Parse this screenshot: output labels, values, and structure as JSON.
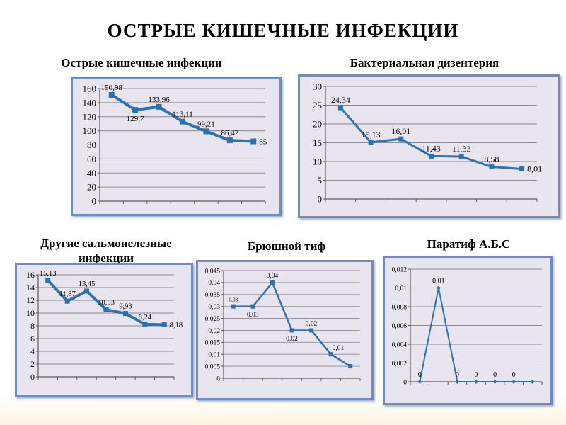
{
  "slide": {
    "title": "ОСТРЫЕ КИШЕЧНЫЕ ИНФЕКЦИИ"
  },
  "colors": {
    "frame_border": "#6b8dc2",
    "plot_background": "#e8e5f1",
    "line": "#2e73b0",
    "marker": "#2e6fae",
    "grid": "#8c8c8c",
    "axis": "#5a5a5a",
    "text": "#000000"
  },
  "chart_data": [
    {
      "id": "acute-intestinal-infections",
      "type": "line",
      "title": "Острые кишечные инфекции",
      "values": [
        150.98,
        129.7,
        133.96,
        113.11,
        99.21,
        86.42,
        85
      ],
      "point_labels": [
        "150,98",
        "129,7",
        "133,96",
        "113,11",
        "99,21",
        "86,42",
        "85"
      ],
      "label_positions": [
        "above",
        "below",
        "above",
        "above",
        "above",
        "above",
        "right"
      ],
      "ylim": [
        0,
        160
      ],
      "ytick_labels": [
        "0",
        "20",
        "40",
        "60",
        "80",
        "100",
        "120",
        "140",
        "160"
      ],
      "x_tick_labels": [],
      "marker": "square",
      "grid": true,
      "legend": "none"
    },
    {
      "id": "bacterial-dysentery",
      "type": "line",
      "title": "Бактериальная дизентерия",
      "values": [
        24.34,
        15.13,
        16.01,
        11.43,
        11.33,
        8.58,
        8.01
      ],
      "point_labels": [
        "24,34",
        "15,13",
        "16,01",
        "11,43",
        "11,33",
        "8,58",
        "8,01"
      ],
      "label_positions": [
        "above",
        "above",
        "above",
        "above",
        "above",
        "above",
        "right"
      ],
      "ylim": [
        0,
        30
      ],
      "ytick_labels": [
        "0",
        "5",
        "10",
        "15",
        "20",
        "25",
        "30"
      ],
      "x_tick_labels": [],
      "marker": "square",
      "grid": true,
      "legend": "none"
    },
    {
      "id": "other-salmonella-infections",
      "type": "line",
      "title": "Другие сальмонелезные инфекции",
      "values": [
        15.13,
        11.87,
        13.45,
        10.53,
        9.93,
        8.24,
        8.18
      ],
      "point_labels": [
        "15,13",
        "11,87",
        "13,45",
        "10,53",
        "9,93",
        "8,24",
        "8,18"
      ],
      "label_positions": [
        "above",
        "above",
        "above",
        "above",
        "above",
        "above",
        "right"
      ],
      "ylim": [
        0,
        16
      ],
      "ytick_labels": [
        "0",
        "2",
        "4",
        "6",
        "8",
        "10",
        "12",
        "14",
        "16"
      ],
      "x_tick_labels": [],
      "marker": "square",
      "grid": true,
      "legend": "none"
    },
    {
      "id": "typhoid-fever",
      "type": "line",
      "title": "Брюшной тиф",
      "values": [
        0.03,
        0.03,
        0.04,
        0.02,
        0.02,
        0.01,
        0.005
      ],
      "point_labels": [
        "0,03",
        "0,03",
        "0,04",
        "0,02",
        "0,02",
        "0,01",
        ""
      ],
      "label_positions": [
        "above",
        "below",
        "above",
        "below",
        "above",
        "above-right",
        ""
      ],
      "small_labels": [
        0
      ],
      "ylim": [
        0,
        0.045
      ],
      "ytick_labels": [
        "0",
        "0,005",
        "0,01",
        "0,015",
        "0,02",
        "0,025",
        "0,03",
        "0,035",
        "0,04",
        "0,045"
      ],
      "x_tick_labels": [],
      "marker": "square",
      "grid": true,
      "legend": "none"
    },
    {
      "id": "paratyphoid-abc",
      "type": "line",
      "title": "Паратиф А.Б.С",
      "values": [
        0,
        0.01,
        0,
        0,
        0,
        0,
        0
      ],
      "point_labels": [
        "0",
        "0,01",
        "0",
        "0",
        "0",
        "0",
        ""
      ],
      "label_positions": [
        "above",
        "above",
        "above",
        "above",
        "above",
        "above",
        ""
      ],
      "ylim": [
        0,
        0.012
      ],
      "ytick_labels": [
        "0",
        "0,002",
        "0,004",
        "0,006",
        "0,008",
        "0,01",
        "0,012"
      ],
      "x_tick_labels": [],
      "marker": "diamond",
      "grid": true,
      "legend": "none"
    }
  ]
}
